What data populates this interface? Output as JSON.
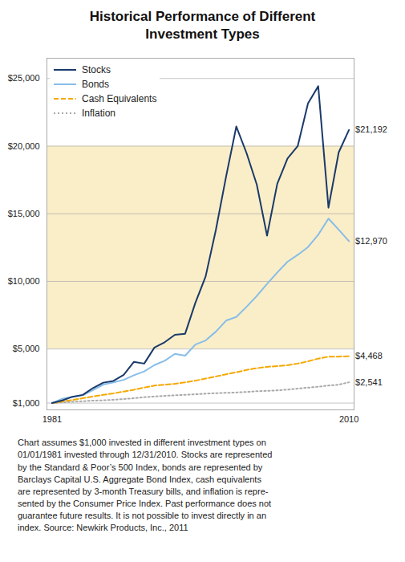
{
  "chart_data": {
    "type": "line",
    "title": "Historical Performance of Different\nInvestment Types",
    "x": [
      1981,
      1982,
      1983,
      1984,
      1985,
      1986,
      1987,
      1988,
      1989,
      1990,
      1991,
      1992,
      1993,
      1994,
      1995,
      1996,
      1997,
      1998,
      1999,
      2000,
      2001,
      2002,
      2003,
      2004,
      2005,
      2006,
      2007,
      2008,
      2009,
      2010
    ],
    "series": [
      {
        "name": "Stocks",
        "color": "#1a3a6b",
        "line_style": "solid",
        "values": [
          1000,
          1200,
          1470,
          1605,
          2115,
          2510,
          2640,
          3090,
          4050,
          3920,
          5110,
          5500,
          6050,
          6130,
          8420,
          10360,
          13800,
          17750,
          21450,
          19480,
          17150,
          13380,
          17220,
          19090,
          20010,
          23160,
          24430,
          15450,
          19540,
          21192
        ]
      },
      {
        "name": "Bonds",
        "color": "#87bde8",
        "line_style": "solid",
        "values": [
          1000,
          1320,
          1460,
          1580,
          1960,
          2370,
          2530,
          2720,
          3060,
          3340,
          3810,
          4130,
          4640,
          4510,
          5330,
          5630,
          6280,
          7100,
          7370,
          8120,
          8920,
          9810,
          10660,
          11450,
          11960,
          12540,
          13450,
          14640,
          13820,
          12970
        ]
      },
      {
        "name": "Cash Equivalents",
        "color": "#f5a800",
        "line_style": "dashed",
        "values": [
          1000,
          1120,
          1230,
          1360,
          1490,
          1610,
          1720,
          1850,
          1990,
          2150,
          2290,
          2360,
          2430,
          2530,
          2660,
          2810,
          2970,
          3130,
          3280,
          3450,
          3580,
          3680,
          3740,
          3800,
          3920,
          4090,
          4290,
          4430,
          4440,
          4468
        ]
      },
      {
        "name": "Inflation",
        "color": "#aaaaaa",
        "line_style": "dotted",
        "values": [
          1000,
          1060,
          1092,
          1139,
          1183,
          1205,
          1249,
          1299,
          1360,
          1435,
          1488,
          1532,
          1576,
          1615,
          1654,
          1700,
          1733,
          1760,
          1784,
          1825,
          1878,
          1906,
          1945,
          2000,
          2072,
          2142,
          2214,
          2296,
          2360,
          2541
        ]
      }
    ],
    "xlim": [
      1980.5,
      2010.5
    ],
    "xticks": [
      1981,
      2010
    ],
    "ylim": [
      500,
      26500
    ],
    "yticks": [
      {
        "value": 1000,
        "label": "$1,000"
      },
      {
        "value": 5000,
        "label": "$5,000"
      },
      {
        "value": 10000,
        "label": "$10,000"
      },
      {
        "value": 15000,
        "label": "$15,000"
      },
      {
        "value": 20000,
        "label": "$20,000"
      },
      {
        "value": 25000,
        "label": "$25,000"
      }
    ],
    "grid": true,
    "legend": "upper left",
    "band": {
      "ymin": 5000,
      "ymax": 20000,
      "color": "#faeec8"
    },
    "annotations": [
      {
        "text": "$21,192",
        "x": 2010,
        "y": 21192
      },
      {
        "text": "$12,970",
        "x": 2010,
        "y": 12970
      },
      {
        "text": "$4,468",
        "x": 2010,
        "y": 4468
      },
      {
        "text": "$2,541",
        "x": 2010,
        "y": 2541
      }
    ],
    "footnote": "Chart assumes $1,000 invested in different investment types on\n01/01/1981 invested through 12/31/2010. Stocks are represented\nby the Standard & Poor’s 500 Index, bonds are represented by\nBarclays Capital U.S. Aggregate Bond Index, cash equivalents\nare represented by 3-month Treasury bills, and inflation is repre-\nsented by the Consumer Price Index. Past performance does not\nguarantee future results. It is not possible to invest directly in an\nindex. Source: Newkirk Products, Inc., 2011"
  }
}
